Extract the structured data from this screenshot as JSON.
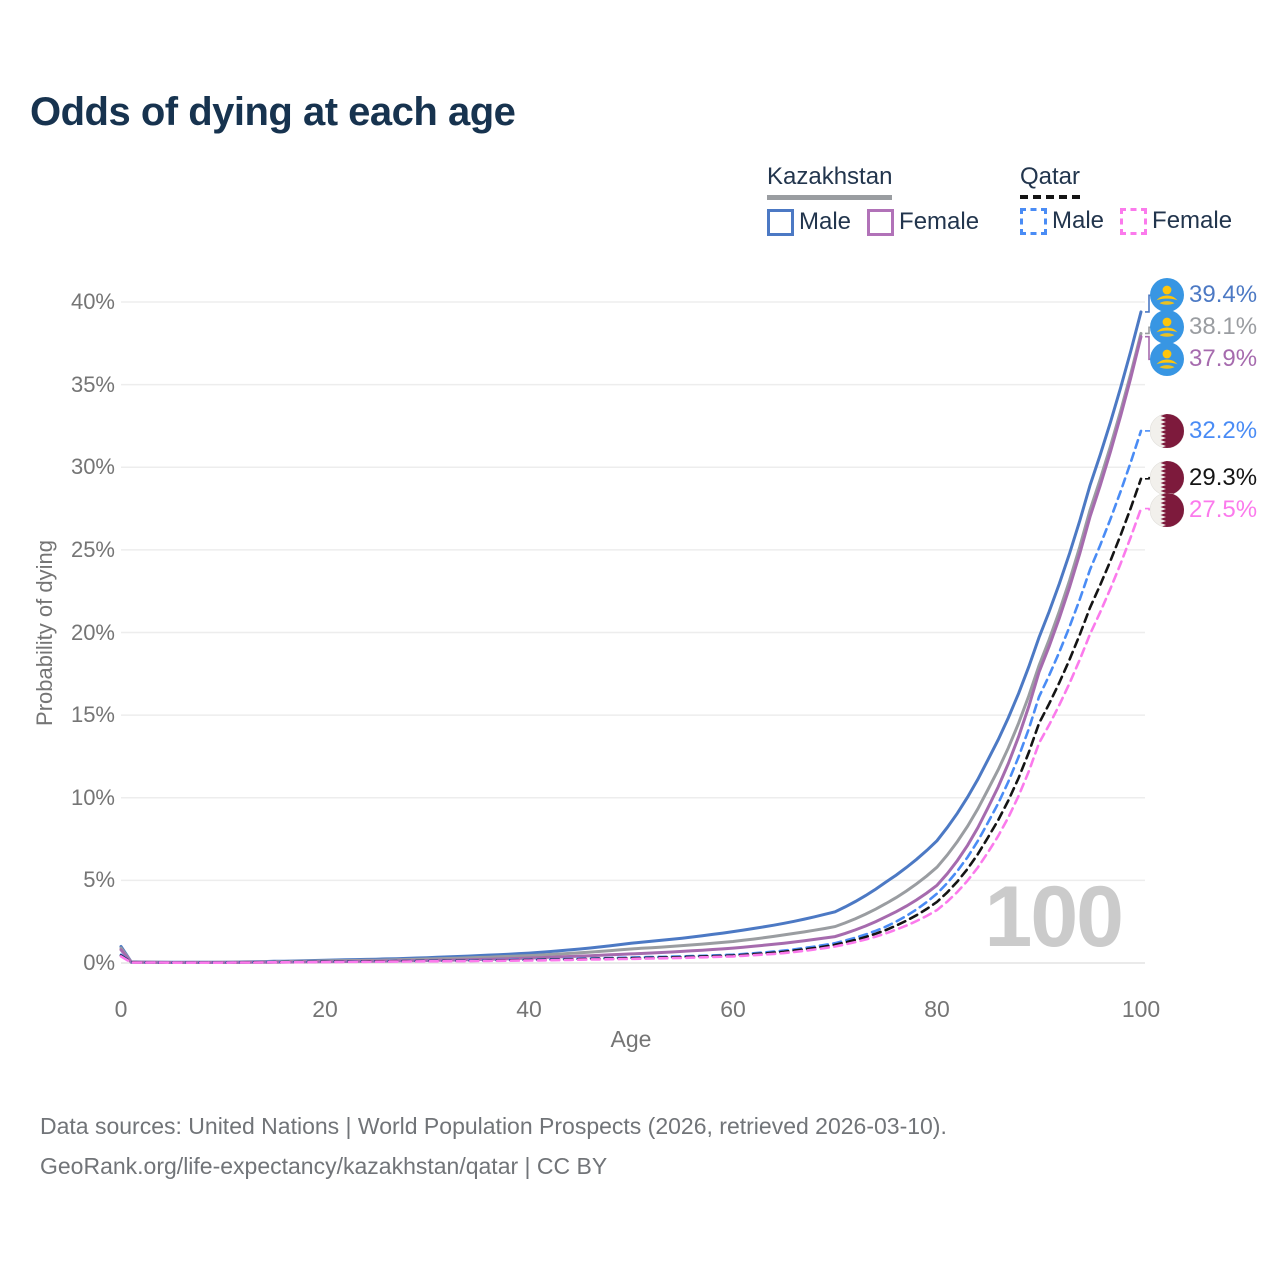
{
  "title": "Odds of dying at each age",
  "legend": {
    "kazakhstan": {
      "title": "Kazakhstan",
      "male": "Male",
      "female": "Female"
    },
    "qatar": {
      "title": "Qatar",
      "male": "Male",
      "female": "Female"
    }
  },
  "chart_data": {
    "type": "line",
    "title": "Odds of dying at each age",
    "xlabel": "Age",
    "ylabel": "Probability of dying",
    "xlim": [
      0,
      100
    ],
    "ylim": [
      0,
      40
    ],
    "grid": "horizontal",
    "legend_position": "top-right",
    "age_watermark": "100",
    "x_ticks": [
      0,
      20,
      40,
      60,
      80,
      100
    ],
    "y_ticks": [
      {
        "value": 0,
        "label": "0%"
      },
      {
        "value": 5,
        "label": "5%"
      },
      {
        "value": 10,
        "label": "10%"
      },
      {
        "value": 15,
        "label": "15%"
      },
      {
        "value": 20,
        "label": "20%"
      },
      {
        "value": 25,
        "label": "25%"
      },
      {
        "value": 30,
        "label": "30%"
      },
      {
        "value": 35,
        "label": "35%"
      },
      {
        "value": 40,
        "label": "40%"
      }
    ],
    "x": [
      0,
      1,
      5,
      10,
      15,
      20,
      25,
      30,
      35,
      40,
      45,
      50,
      55,
      60,
      65,
      70,
      75,
      80,
      85,
      90,
      95,
      100
    ],
    "series": [
      {
        "name": "Kazakhstan Male",
        "country": "Kazakhstan",
        "sex": "Male",
        "style": "solid",
        "color": "#4C79C4",
        "flag": "kz",
        "end_label": "39.4%",
        "end_value": 39.4,
        "values": [
          1.0,
          0.07,
          0.04,
          0.05,
          0.1,
          0.17,
          0.23,
          0.32,
          0.45,
          0.6,
          0.85,
          1.2,
          1.5,
          1.9,
          2.4,
          3.1,
          4.9,
          7.4,
          12.3,
          19.7,
          28.9,
          39.4
        ]
      },
      {
        "name": "Kazakhstan (both sexes)",
        "country": "Kazakhstan",
        "sex": "Both",
        "style": "solid",
        "color": "#9A9DA1",
        "flag": "kz",
        "end_label": "38.1%",
        "end_value": 38.1,
        "values": [
          0.9,
          0.06,
          0.03,
          0.04,
          0.08,
          0.13,
          0.17,
          0.24,
          0.33,
          0.45,
          0.62,
          0.85,
          1.05,
          1.3,
          1.7,
          2.2,
          3.6,
          5.8,
          10.5,
          18.0,
          27.4,
          38.1
        ]
      },
      {
        "name": "Kazakhstan Female",
        "country": "Kazakhstan",
        "sex": "Female",
        "style": "solid",
        "color": "#A66BAE",
        "flag": "kz",
        "end_label": "37.9%",
        "end_value": 37.9,
        "values": [
          0.8,
          0.05,
          0.03,
          0.03,
          0.05,
          0.08,
          0.11,
          0.15,
          0.21,
          0.3,
          0.42,
          0.55,
          0.7,
          0.9,
          1.2,
          1.6,
          2.8,
          4.7,
          9.4,
          17.6,
          27.0,
          37.9
        ]
      },
      {
        "name": "Qatar Male",
        "country": "Qatar",
        "sex": "Male",
        "style": "dashed",
        "color": "#4A8CF5",
        "flag": "qa",
        "end_label": "32.2%",
        "end_value": 32.2,
        "values": [
          0.5,
          0.04,
          0.02,
          0.03,
          0.06,
          0.09,
          0.11,
          0.13,
          0.16,
          0.2,
          0.26,
          0.33,
          0.4,
          0.5,
          0.75,
          1.2,
          2.2,
          4.2,
          8.5,
          16.1,
          23.8,
          32.2
        ]
      },
      {
        "name": "Qatar (both sexes)",
        "country": "Qatar",
        "sex": "Both",
        "style": "dashed",
        "color": "#141414",
        "flag": "qa",
        "end_label": "29.3%",
        "end_value": 29.3,
        "values": [
          0.45,
          0.04,
          0.02,
          0.03,
          0.05,
          0.08,
          0.1,
          0.12,
          0.14,
          0.18,
          0.23,
          0.29,
          0.36,
          0.45,
          0.68,
          1.1,
          2.0,
          3.7,
          7.6,
          14.5,
          21.5,
          29.3
        ]
      },
      {
        "name": "Qatar Female",
        "country": "Qatar",
        "sex": "Female",
        "style": "dashed",
        "color": "#FB7AEC",
        "flag": "qa",
        "end_label": "27.5%",
        "end_value": 27.5,
        "values": [
          0.4,
          0.03,
          0.02,
          0.02,
          0.04,
          0.06,
          0.08,
          0.1,
          0.12,
          0.15,
          0.2,
          0.25,
          0.31,
          0.4,
          0.6,
          1.0,
          1.8,
          3.2,
          6.7,
          13.3,
          19.9,
          27.5
        ]
      }
    ]
  },
  "footer": {
    "line1": "Data sources: United Nations | World Population Prospects (2026, retrieved 2026-03-10).",
    "line2": "GeoRank.org/life-expectancy/kazakhstan/qatar | CC BY"
  }
}
